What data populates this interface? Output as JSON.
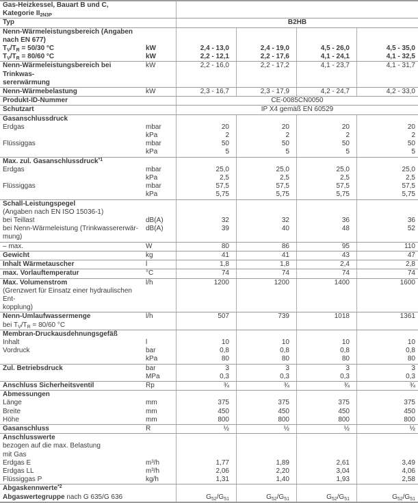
{
  "table": {
    "product_type": "B2HB",
    "product_id": "CE-0085CN0050",
    "schutzart": "IP X4 gemäß EN 60529",
    "rows": [
      {
        "bt": false,
        "label": [
          [
            "Gas-Heizkessel, Bauart B und C,",
            true
          ],
          [
            "Kategorie II~2N3P~",
            true
          ]
        ],
        "unit": "",
        "span": "",
        "spanBold": false
      },
      {
        "bt": true,
        "label": [
          [
            "Typ",
            true
          ]
        ],
        "unit": "",
        "span": "B2HB",
        "spanBold": true
      },
      {
        "bt": true,
        "label": [
          [
            "Nenn-Wärmeleistungsbereich (Angaben",
            true
          ],
          [
            "nach EN 677)",
            true
          ]
        ],
        "unit": "",
        "values": [
          "",
          "",
          "",
          ""
        ]
      },
      {
        "bt": false,
        "label": [
          [
            "T~V~/T~R~ = 50/30 °C",
            true
          ]
        ],
        "unit": "kW",
        "unitBold": true,
        "values": [
          "2,4 - 13,0",
          "2,4 - 19,0",
          "4,5 - 26,0",
          "4,5 - 35,0"
        ],
        "valuesBold": true
      },
      {
        "bt": false,
        "label": [
          [
            "T~V~/T~R~ = 80/60 °C",
            true
          ]
        ],
        "unit": "kW",
        "unitBold": true,
        "values": [
          "2,2 - 12,1",
          "2,2 - 17,6",
          "4,1 - 24,1",
          "4,1 - 32,5"
        ],
        "valuesBold": true
      },
      {
        "bt": true,
        "label": [
          [
            "Nenn-Wärmeleistungsbereich bei Trinkwas-",
            true
          ],
          [
            "sererwärmung",
            true
          ]
        ],
        "unit": "kW",
        "values": [
          "2,2 - 16,0",
          "2,2 - 17,2",
          "4,1 - 23,7",
          "4,1 - 31,7"
        ]
      },
      {
        "bt": true,
        "label": [
          [
            "Nenn-Wärmebelastung",
            true
          ]
        ],
        "unit": "kW",
        "values": [
          "2,3 - 16,7",
          "2,3 - 17,9",
          "4,2 - 24,7",
          "4,2 - 33,0"
        ]
      },
      {
        "bt": true,
        "label": [
          [
            "Produkt-ID-Nummer",
            true
          ]
        ],
        "unit": "",
        "span": "CE-0085CN0050",
        "spanBold": false
      },
      {
        "bt": true,
        "label": [
          [
            "Schutzart",
            true
          ]
        ],
        "unit": "",
        "span": "IP X4 gemäß EN 60529",
        "spanBold": false
      },
      {
        "bt": true,
        "label": [
          [
            "Gasanschlussdruck",
            true
          ]
        ],
        "unit": "",
        "values": [
          "",
          "",
          "",
          ""
        ]
      },
      {
        "bt": false,
        "label": [
          [
            "Erdgas",
            false
          ]
        ],
        "unit": "mbar",
        "values": [
          "20",
          "20",
          "20",
          "20"
        ]
      },
      {
        "bt": false,
        "label": [
          [
            "",
            false
          ]
        ],
        "unit": "kPa",
        "values": [
          "2",
          "2",
          "2",
          "2"
        ]
      },
      {
        "bt": false,
        "label": [
          [
            "Flüssiggas",
            false
          ]
        ],
        "unit": "mbar",
        "values": [
          "50",
          "50",
          "50",
          "50"
        ]
      },
      {
        "bt": false,
        "label": [
          [
            "",
            false
          ]
        ],
        "unit": "kPa",
        "values": [
          "5",
          "5",
          "5",
          "5"
        ]
      },
      {
        "bt": true,
        "label": [
          [
            "Max. zul. Gasanschlussdruck^*1^",
            true
          ]
        ],
        "unit": "",
        "values": [
          "",
          "",
          "",
          ""
        ]
      },
      {
        "bt": false,
        "label": [
          [
            "Erdgas",
            false
          ]
        ],
        "unit": "mbar",
        "values": [
          "25,0",
          "25,0",
          "25,0",
          "25,0"
        ]
      },
      {
        "bt": false,
        "label": [
          [
            "",
            false
          ]
        ],
        "unit": "kPa",
        "values": [
          "2,5",
          "2,5",
          "2,5",
          "2,5"
        ]
      },
      {
        "bt": false,
        "label": [
          [
            "Flüssiggas",
            false
          ]
        ],
        "unit": "mbar",
        "values": [
          "57,5",
          "57,5",
          "57,5",
          "57,5"
        ]
      },
      {
        "bt": false,
        "label": [
          [
            "",
            false
          ]
        ],
        "unit": "kPa",
        "values": [
          "5,75",
          "5,75",
          "5,75",
          "5,75"
        ]
      },
      {
        "bt": true,
        "label": [
          [
            "Schall-Leistungspegel",
            true
          ],
          [
            "(Angaben nach EN ISO 15036-1)",
            false
          ]
        ],
        "unit": "",
        "values": [
          "",
          "",
          "",
          ""
        ]
      },
      {
        "bt": false,
        "label": [
          [
            "bei Teillast",
            false
          ]
        ],
        "unit": "dB(A)",
        "values": [
          "32",
          "32",
          "36",
          "36"
        ]
      },
      {
        "bt": false,
        "label": [
          [
            "bei Nenn-Wärmeleistung (Trinkwassererwär-",
            false
          ],
          [
            "mung)",
            false
          ]
        ],
        "unit": "dB(A)",
        "values": [
          "39",
          "40",
          "48",
          "52"
        ]
      },
      {
        "bt": true,
        "label": [
          [
            "– max.",
            false
          ]
        ],
        "unit": "W",
        "values": [
          "80",
          "86",
          "95",
          "110"
        ]
      },
      {
        "bt": true,
        "label": [
          [
            "Gewicht",
            true
          ]
        ],
        "unit": "kg",
        "values": [
          "41",
          "41",
          "43",
          "47"
        ]
      },
      {
        "bt": true,
        "label": [
          [
            "Inhalt Wärmetauscher",
            true
          ]
        ],
        "unit": "l",
        "values": [
          "1,8",
          "1,8",
          "2,4",
          "2,8"
        ]
      },
      {
        "bt": true,
        "label": [
          [
            "max. Vorlauftemperatur",
            true
          ]
        ],
        "unit": "°C",
        "values": [
          "74",
          "74",
          "74",
          "74"
        ]
      },
      {
        "bt": true,
        "label": [
          [
            "Max. Volumenstrom",
            true
          ],
          [
            "(Grenzwert für Einsatz einer hydraulischen Ent-",
            false
          ],
          [
            "kopplung)",
            false
          ]
        ],
        "unit": "l/h",
        "values": [
          "1200",
          "1200",
          "1400",
          "1600"
        ]
      },
      {
        "bt": true,
        "label": [
          [
            "Nenn-Umlaufwassermenge",
            true
          ],
          [
            "bei T~V~/T~R~ = 80/60 °C",
            false
          ]
        ],
        "unit": "l/h",
        "values": [
          "507",
          "739",
          "1018",
          "1361"
        ]
      },
      {
        "bt": true,
        "label": [
          [
            "Membran-Druckausdehnungsgefäß",
            true
          ]
        ],
        "unit": "",
        "values": [
          "",
          "",
          "",
          ""
        ]
      },
      {
        "bt": false,
        "label": [
          [
            "Inhalt",
            false
          ]
        ],
        "unit": "l",
        "values": [
          "10",
          "10",
          "10",
          "10"
        ]
      },
      {
        "bt": false,
        "label": [
          [
            "Vordruck",
            false
          ]
        ],
        "unit": "bar",
        "values": [
          "0,8",
          "0,8",
          "0,8",
          "0,8"
        ]
      },
      {
        "bt": false,
        "label": [
          [
            "",
            false
          ]
        ],
        "unit": "kPa",
        "values": [
          "80",
          "80",
          "80",
          "80"
        ]
      },
      {
        "bt": true,
        "label": [
          [
            "Zul. Betriebsdruck",
            true
          ]
        ],
        "unit": "bar",
        "values": [
          "3",
          "3",
          "3",
          "3"
        ]
      },
      {
        "bt": false,
        "label": [
          [
            "",
            false
          ]
        ],
        "unit": "MPa",
        "values": [
          "0,3",
          "0,3",
          "0,3",
          "0,3"
        ]
      },
      {
        "bt": true,
        "label": [
          [
            "Anschluss Sicherheitsventil",
            true
          ]
        ],
        "unit": "Rp",
        "values": [
          "¾",
          "¾",
          "¾",
          "¾"
        ]
      },
      {
        "bt": true,
        "label": [
          [
            "Abmessungen",
            true
          ]
        ],
        "unit": "",
        "values": [
          "",
          "",
          "",
          ""
        ]
      },
      {
        "bt": false,
        "label": [
          [
            "Länge",
            false
          ]
        ],
        "unit": "mm",
        "values": [
          "375",
          "375",
          "375",
          "375"
        ]
      },
      {
        "bt": false,
        "label": [
          [
            "Breite",
            false
          ]
        ],
        "unit": "mm",
        "values": [
          "450",
          "450",
          "450",
          "450"
        ]
      },
      {
        "bt": false,
        "label": [
          [
            "Höhe",
            false
          ]
        ],
        "unit": "mm",
        "values": [
          "800",
          "800",
          "800",
          "800"
        ]
      },
      {
        "bt": true,
        "label": [
          [
            "Gasanschluss",
            true
          ]
        ],
        "unit": "R",
        "values": [
          "½",
          "½",
          "½",
          "½"
        ]
      },
      {
        "bt": true,
        "label": [
          [
            "Anschlusswerte",
            true
          ],
          [
            "bezogen auf die max. Belastung",
            false
          ],
          [
            "mit Gas",
            false
          ]
        ],
        "unit": "",
        "values": [
          "",
          "",
          "",
          ""
        ]
      },
      {
        "bt": false,
        "label": [
          [
            "Erdgas E",
            false
          ]
        ],
        "unit": "m³/h",
        "values": [
          "1,77",
          "1,89",
          "2,61",
          "3,49"
        ]
      },
      {
        "bt": false,
        "label": [
          [
            "Erdgas LL",
            false
          ]
        ],
        "unit": "m³/h",
        "values": [
          "2,06",
          "2,20",
          "3,04",
          "4,06"
        ]
      },
      {
        "bt": false,
        "label": [
          [
            "Flüssiggas P",
            false
          ]
        ],
        "unit": "kg/h",
        "values": [
          "1,31",
          "1,40",
          "1,93",
          "2,58"
        ]
      },
      {
        "bt": true,
        "label": [
          [
            "Abgaskennwerte^*2^",
            true
          ]
        ],
        "unit": "",
        "values": [
          "",
          "",
          "",
          ""
        ]
      },
      {
        "bt": false,
        "label": [
          [
            "*Abgaswertegruppe* nach G 635/G 636",
            false
          ]
        ],
        "unit": "",
        "values": [
          "G~52~/G~51~",
          "G~52~/G~51~",
          "G~52~/G~51~",
          "G~52~/G~51~"
        ]
      }
    ]
  }
}
